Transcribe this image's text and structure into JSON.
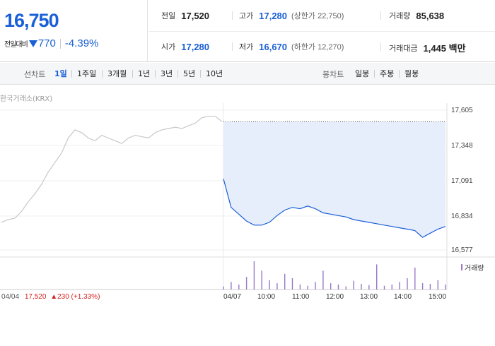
{
  "quote": {
    "price": "16,750",
    "change_label": "전일대비",
    "change_amount": "770",
    "change_percent": "-4.39%"
  },
  "stats": {
    "prev_close": {
      "label": "전일",
      "value": "17,520"
    },
    "high": {
      "label": "고가",
      "value": "17,280",
      "sub": "(상한가 22,750)"
    },
    "volume": {
      "label": "거래량",
      "value": "85,638"
    },
    "open": {
      "label": "시가",
      "value": "17,280"
    },
    "low": {
      "label": "저가",
      "value": "16,670",
      "sub": "(하한가 12,270)"
    },
    "trade_value": {
      "label": "거래대금",
      "value": "1,445 백만"
    }
  },
  "tabs": {
    "line_chart_label": "선차트",
    "line_periods": [
      "1일",
      "1주일",
      "3개월",
      "1년",
      "3년",
      "5년",
      "10년"
    ],
    "active_period": "1일",
    "candle_chart_label": "봉차트",
    "candle_periods": [
      "일봉",
      "주봉",
      "월봉"
    ]
  },
  "chart": {
    "source": "한국거래소(KRX)",
    "y_ticks": [
      "17,605",
      "17,348",
      "17,091",
      "16,834",
      "16,577"
    ],
    "x_ticks": [
      "04/07",
      "10:00",
      "11:00",
      "12:00",
      "13:00",
      "14:00",
      "15:00"
    ],
    "prev_day": {
      "date": "04/04",
      "price": "17,520",
      "change": "▲230 (+1.33%)"
    },
    "volume_legend": "거래량"
  },
  "colors": {
    "down": "#1a5fd6",
    "up": "#d62020",
    "prev_line": "#c8c8c8",
    "fill": "#e6edfb",
    "volume": "#9a77c8"
  },
  "chart_data": {
    "type": "line",
    "ylim": [
      16577,
      17605
    ],
    "series": [
      {
        "values": [
          16780,
          16800,
          16810,
          16860,
          16930,
          16990,
          17060,
          17150,
          17220,
          17290,
          17400,
          17460,
          17440,
          17400,
          17380,
          17420,
          17400,
          17380,
          17360,
          17400,
          17420,
          17410,
          17400,
          17440,
          17460,
          17470,
          17480,
          17470,
          17490,
          17510,
          17550,
          17560,
          17560,
          17520
        ]
      },
      {
        "values": [
          17100,
          16890,
          16840,
          16790,
          16760,
          16760,
          16780,
          16830,
          16870,
          16890,
          16880,
          16900,
          16880,
          16850,
          16840,
          16830,
          16820,
          16800,
          16790,
          16780,
          16770,
          16760,
          16750,
          16740,
          16730,
          16720,
          16670,
          16700,
          16730,
          16750
        ]
      }
    ],
    "volume": [
      5,
      12,
      8,
      20,
      45,
      30,
      15,
      10,
      25,
      18,
      8,
      6,
      12,
      30,
      10,
      8,
      5,
      14,
      9,
      7,
      40,
      6,
      8,
      12,
      18,
      35,
      10,
      9,
      15,
      8
    ]
  }
}
